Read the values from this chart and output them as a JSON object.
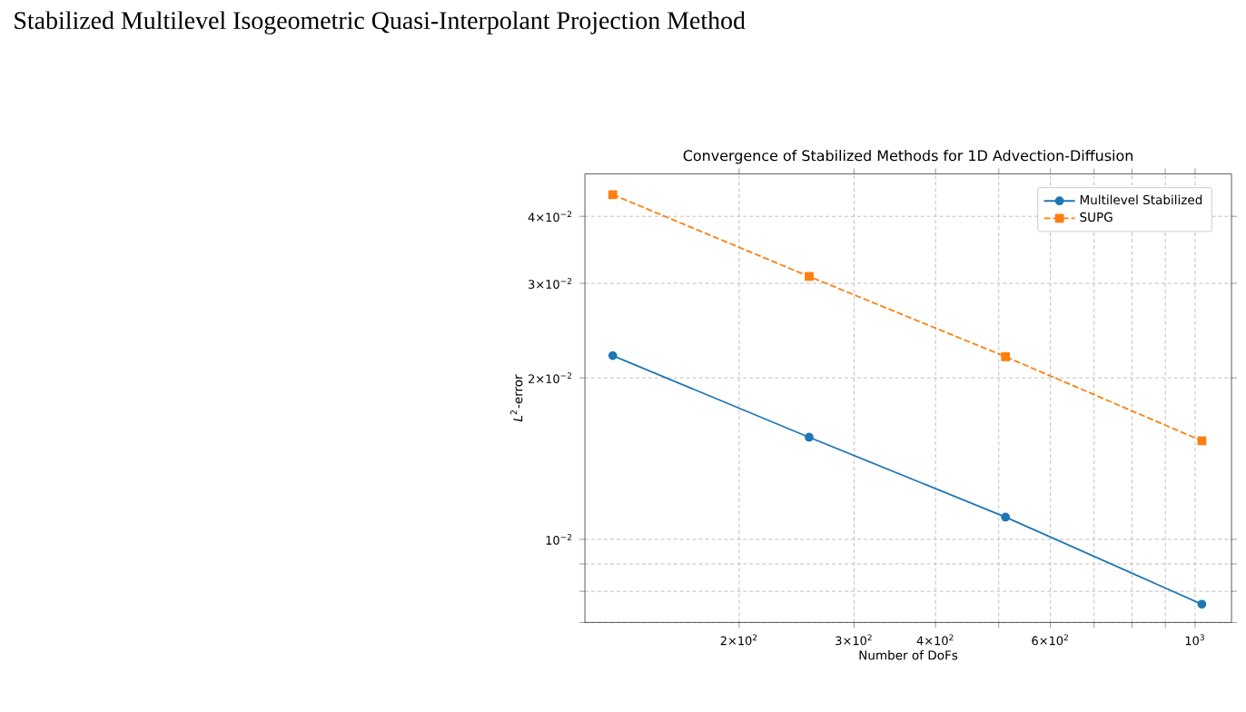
{
  "chart_data": {
    "type": "line",
    "title": "Convergence of Stabilized Methods for 1D Advection-Diffusion",
    "xlabel": "Number of DoFs",
    "ylabel": "*L*$^{2}$-error",
    "annotations": [
      "Stabilized Multilevel Isogeometric Quasi-Interpolant Projection Method"
    ],
    "x": [
      128,
      256,
      512,
      1024
    ],
    "series": [
      {
        "name": "Multilevel Stabilized",
        "color": "#1f77b4",
        "values": [
          0.022,
          0.0155,
          0.011,
          0.00757
        ],
        "marker": "circle",
        "line_style": "solid"
      },
      {
        "name": "SUPG",
        "color": "#ff7f0e",
        "values": [
          0.0439,
          0.0309,
          0.0219,
          0.01526
        ],
        "marker": "square",
        "line_style": "dashed"
      }
    ],
    "log": "xy",
    "xlim": [
      116,
      1137
    ],
    "ylim": [
      0.007,
      0.048
    ],
    "xticks": [
      {
        "value": 200,
        "label": "2×10$^{2}$"
      },
      {
        "value": 300,
        "label": "3×10$^{2}$"
      },
      {
        "value": 400,
        "label": "4×10$^{2}$"
      },
      {
        "value": 500,
        "label": null
      },
      {
        "value": 600,
        "label": "6×10$^{2}$"
      },
      {
        "value": 700,
        "label": null
      },
      {
        "value": 800,
        "label": null
      },
      {
        "value": 900,
        "label": null
      },
      {
        "value": 1000,
        "label": "10$^{3}$"
      }
    ],
    "yticks": [
      {
        "value": 0.007,
        "label": null
      },
      {
        "value": 0.008,
        "label": null
      },
      {
        "value": 0.009,
        "label": null
      },
      {
        "value": 0.01,
        "label": "10$^{−2}$"
      },
      {
        "value": 0.02,
        "label": "2×10$^{−2}$"
      },
      {
        "value": 0.03,
        "label": "3×10$^{−2}$"
      },
      {
        "value": 0.04,
        "label": "4×10$^{−2}$"
      }
    ],
    "grid": true,
    "legend": "top right"
  }
}
